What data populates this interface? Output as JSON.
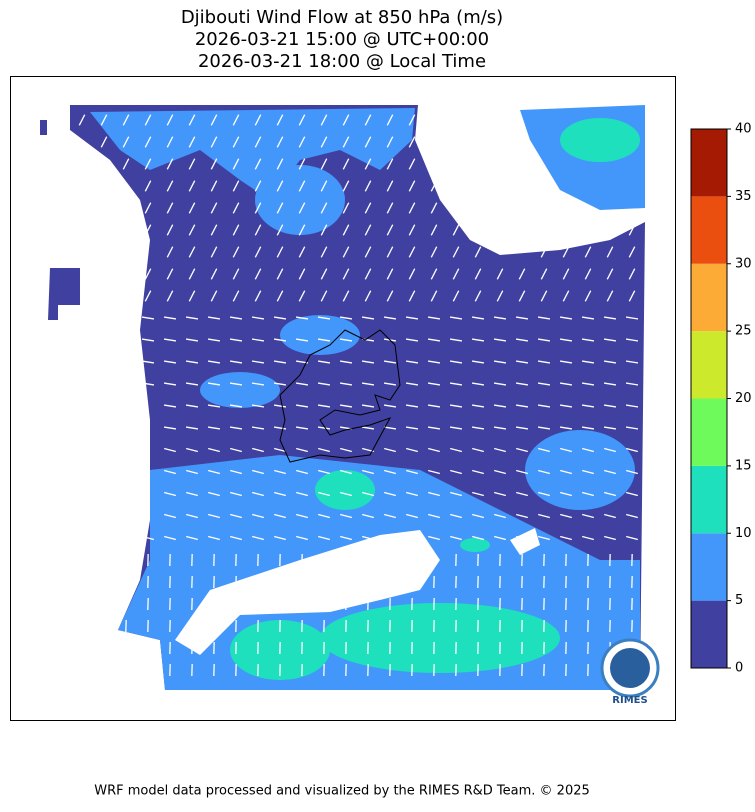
{
  "title": [
    "Djibouti Wind Flow at 850 hPa (m/s)",
    "2026-03-21 15:00 @ UTC+00:00",
    "2026-03-21 18:00 @ Local Time"
  ],
  "colorbar": {
    "levels": [
      0,
      5,
      10,
      15,
      20,
      25,
      30,
      35,
      40
    ],
    "colors": [
      "#4040a0",
      "#4397fb",
      "#1ee0bd",
      "#6efa5a",
      "#cde92c",
      "#fcab37",
      "#ea4f10",
      "#a51a02"
    ]
  },
  "logo": "RIMES",
  "footer": "WRF model data processed and visualized by the RIMES R&D Team. © 2025"
}
